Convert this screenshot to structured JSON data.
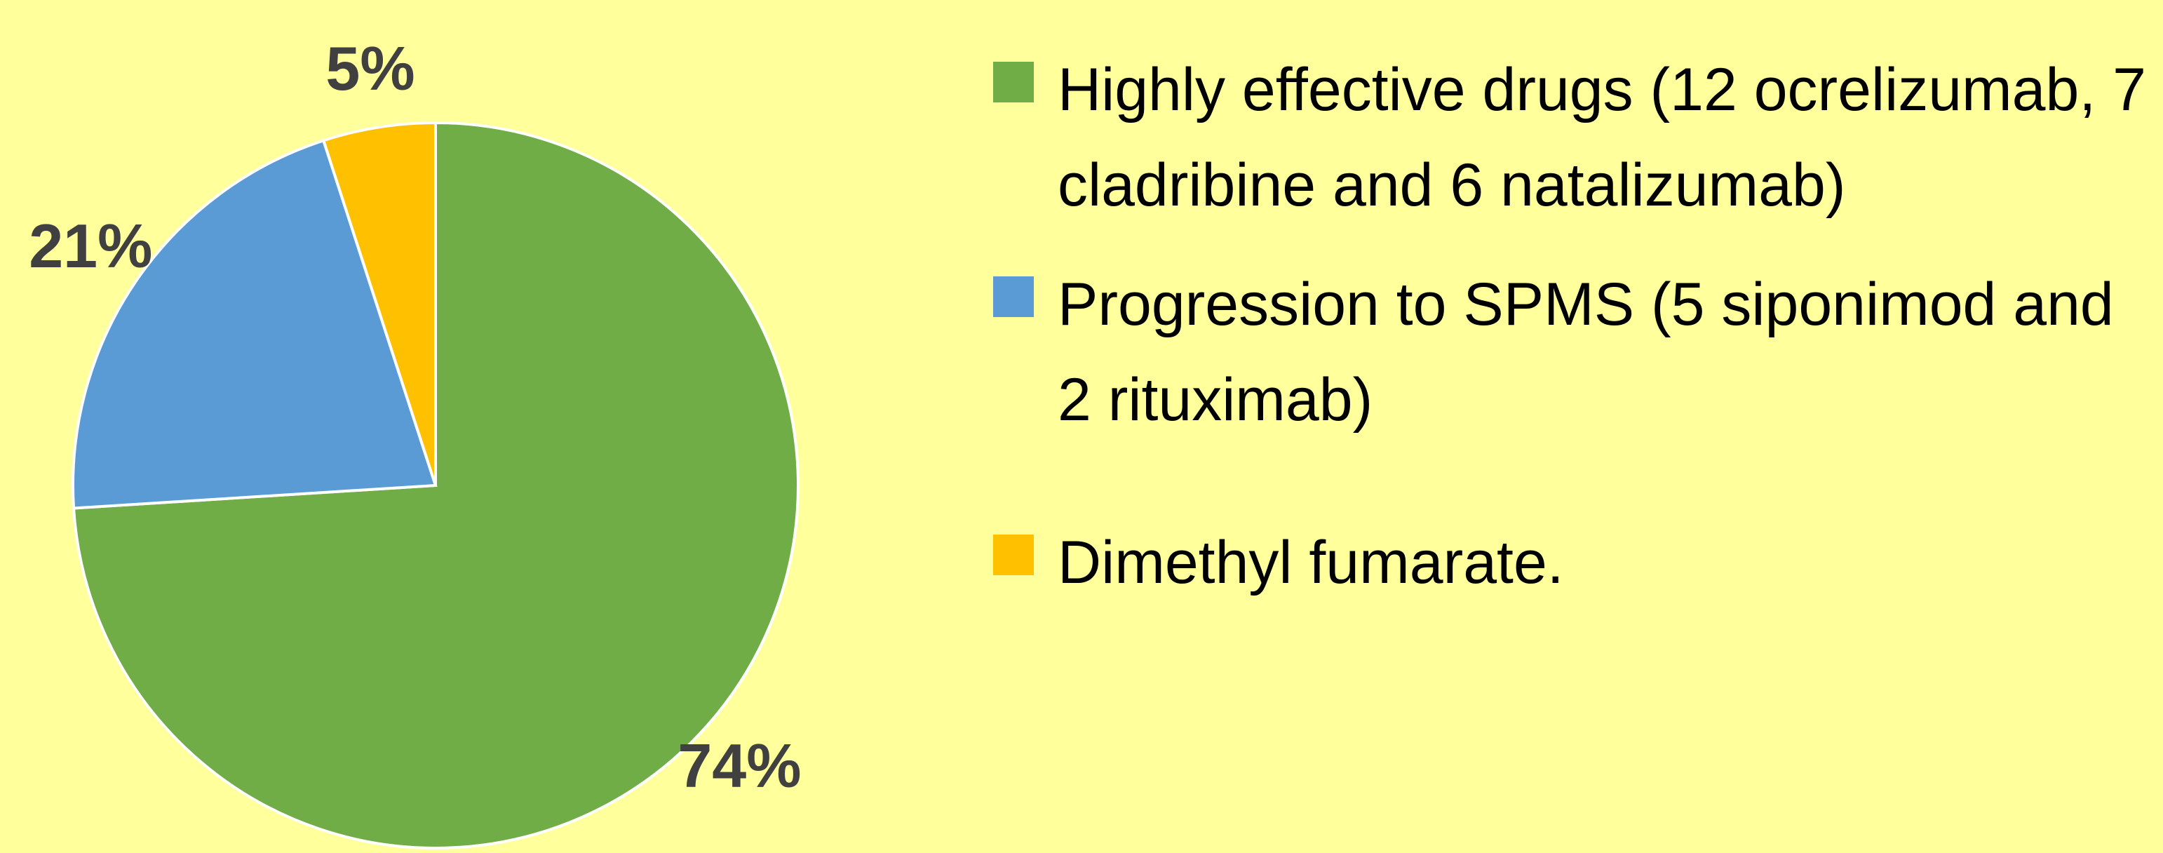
{
  "chart_data": {
    "type": "pie",
    "categories": [
      "Highly effective drugs (12 ocrelizumab, 7 cladribine and 6 natalizumab)",
      "Progression to SPMS (5 siponimod and 2 rituximab)",
      "Dimethyl fumarate."
    ],
    "values": [
      74,
      21,
      5
    ],
    "value_labels": [
      "74%",
      "21%",
      "5%"
    ],
    "colors": [
      "#70ad47",
      "#5b9bd5",
      "#ffc000"
    ]
  }
}
